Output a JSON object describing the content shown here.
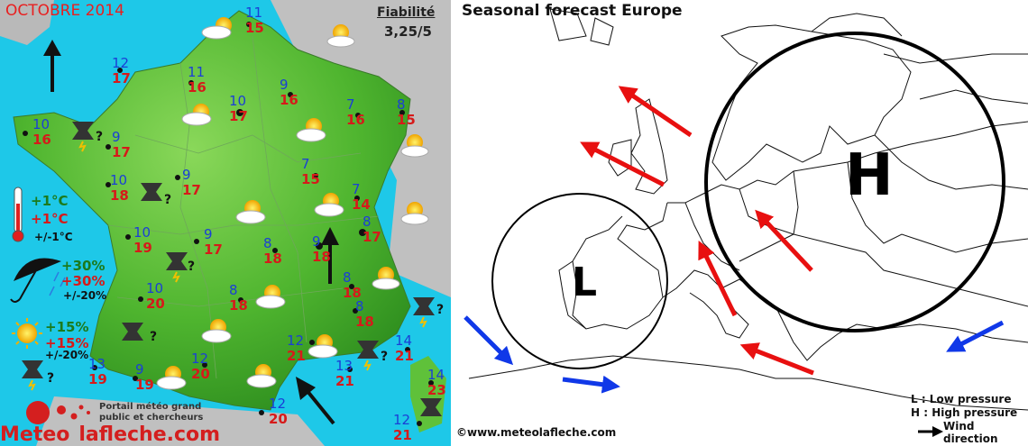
{
  "left_panel": {
    "month": "OCTOBRE 2014",
    "reliability_label": "Fiabilité",
    "reliability_value": "3,25/5",
    "cities": [
      {
        "min": "11",
        "max": "15"
      },
      {
        "min": "12",
        "max": "17"
      },
      {
        "min": "11",
        "max": "16"
      },
      {
        "min": "10",
        "max": "17"
      },
      {
        "min": "9",
        "max": "16"
      },
      {
        "min": "7",
        "max": "16"
      },
      {
        "min": "8",
        "max": "15"
      },
      {
        "min": "10",
        "max": "16"
      },
      {
        "min": "9",
        "max": "17"
      },
      {
        "min": "10",
        "max": "18"
      },
      {
        "min": "9",
        "max": "17"
      },
      {
        "min": "7",
        "max": "15"
      },
      {
        "min": "7",
        "max": "14"
      },
      {
        "min": "8",
        "max": "17"
      },
      {
        "min": "10",
        "max": "19"
      },
      {
        "min": "9",
        "max": "17"
      },
      {
        "min": "8",
        "max": "18"
      },
      {
        "min": "9",
        "max": "18"
      },
      {
        "min": "10",
        "max": "20"
      },
      {
        "min": "8",
        "max": "18"
      },
      {
        "min": "8",
        "max": "18"
      },
      {
        "min": "8",
        "max": "18"
      },
      {
        "min": "12",
        "max": "21"
      },
      {
        "min": "13",
        "max": "21"
      },
      {
        "min": "14",
        "max": "21"
      },
      {
        "min": "13",
        "max": "19"
      },
      {
        "min": "9",
        "max": "19"
      },
      {
        "min": "12",
        "max": "20"
      },
      {
        "min": "12",
        "max": "20"
      },
      {
        "min": "14",
        "max": "23"
      },
      {
        "min": "12",
        "max": "21"
      }
    ],
    "legend": {
      "temp_green": "+1°C",
      "temp_red": "+1°C",
      "temp_black": "+/-1°C",
      "rain_green": "+30%",
      "rain_red": "+30%",
      "rain_black": "+/-20%",
      "sun_green": "+15%",
      "sun_red": "+15%",
      "sun_black": "+/-20%"
    },
    "portal_line1": "Portail météo grand",
    "portal_line2": "public et chercheurs",
    "logo_part1": "Meteo",
    "logo_part2": "lafleche.com",
    "question_mark": "?"
  },
  "right_panel": {
    "title": "Seasonal  forecast Europe",
    "high_label": "H",
    "low_label": "L",
    "legend_low": "L : Low pressure",
    "legend_high": "H : High pressure",
    "legend_wind": "Wind direction",
    "credit": "©www.meteolafleche.com"
  },
  "colors": {
    "sea": "#1ec8e8",
    "land": "#5fc13a",
    "min_temp": "#1a3fd6",
    "max_temp": "#d61a1a",
    "wind_warm": "#e81010",
    "wind_cold": "#1038e8"
  }
}
